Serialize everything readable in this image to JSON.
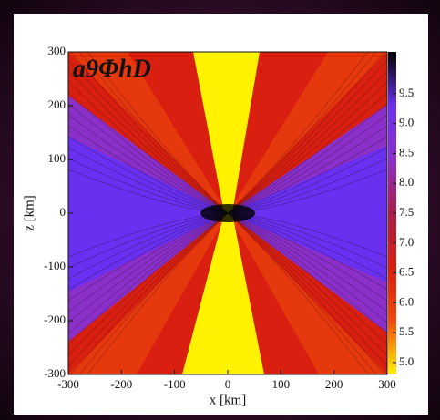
{
  "chart_data": {
    "type": "heatmap",
    "title": "a9ΦhD",
    "x_label": "x [km]",
    "y_label": "z [km]",
    "xlim": [
      -300,
      300
    ],
    "xticks": [
      -300,
      -200,
      -100,
      0,
      100,
      200,
      300
    ],
    "ylim": [
      -300,
      300
    ],
    "yticks": [
      -300,
      -200,
      -100,
      0,
      100,
      200,
      300
    ],
    "clim": [
      4.8,
      10.2
    ],
    "cticks": [
      {
        "value": 5,
        "label": "5.0"
      },
      {
        "value": 5.5,
        "label": "5.5"
      },
      {
        "value": 6,
        "label": "6.0"
      },
      {
        "value": 6.5,
        "label": "6.5"
      },
      {
        "value": 7,
        "label": "7.0"
      },
      {
        "value": 7.5,
        "label": "7.5"
      },
      {
        "value": 8,
        "label": "8.0"
      },
      {
        "value": 8.5,
        "label": "8.5"
      },
      {
        "value": 9,
        "label": "9.0"
      },
      {
        "value": 9.5,
        "label": "9.5"
      }
    ],
    "colormap": [
      "#fff200",
      "#f04a0c",
      "#d81f10",
      "#a81e48",
      "#8a2fc8",
      "#6a30f0",
      "#000000"
    ]
  }
}
